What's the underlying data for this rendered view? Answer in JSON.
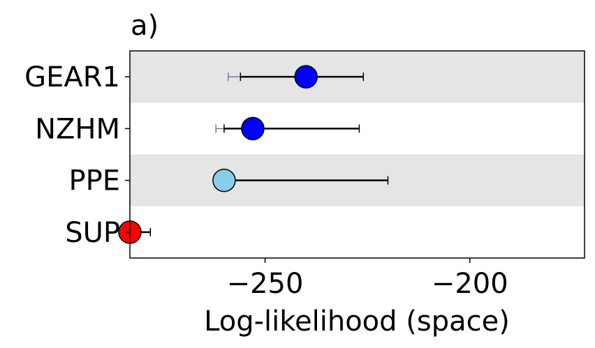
{
  "chart_data": {
    "type": "scatter",
    "panel_label": "a)",
    "title": "",
    "xlabel": "Log-likelihood (space)",
    "ylabel": "",
    "xlim": [
      -283,
      -172
    ],
    "xticks": [
      {
        "value": -250,
        "label": "−250"
      },
      {
        "value": -200,
        "label": "−200"
      }
    ],
    "grid": false,
    "legend": "none",
    "row_band_color": "#e5e5e5",
    "categories": [
      "GEAR1",
      "NZHM",
      "PPE",
      "SUP"
    ],
    "points": [
      {
        "category": "GEAR1",
        "value": -240,
        "ci": [
          -256,
          -226
        ],
        "secondary_low": -259,
        "color": "#0000ff"
      },
      {
        "category": "NZHM",
        "value": -253,
        "ci": [
          -260,
          -227
        ],
        "secondary_low": -262,
        "color": "#0000ff"
      },
      {
        "category": "PPE",
        "value": -260,
        "ci": [
          -260,
          -220
        ],
        "secondary_low": null,
        "color": "#87ceeb"
      },
      {
        "category": "SUP",
        "value": -283,
        "ci": [
          -283,
          -278
        ],
        "secondary_low": null,
        "color": "#ff0000"
      }
    ],
    "colors": {
      "errorbar": "#000000",
      "secondary_errorbar": "#708090",
      "point_edge": "#000000"
    }
  }
}
